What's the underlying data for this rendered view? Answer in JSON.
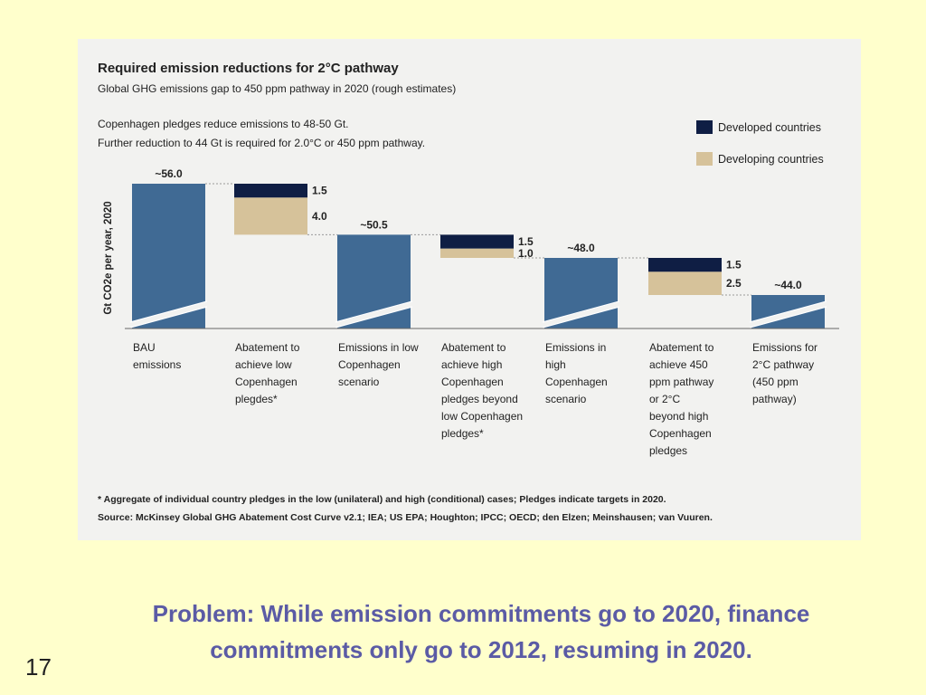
{
  "slide": {
    "caption_lines": [
      "Problem: While emission commitments go to 2020, finance",
      "commitments only go to 2012, resuming in 2020."
    ],
    "page_number": "17"
  },
  "chart_data": {
    "type": "bar",
    "subtype": "waterfall",
    "title": "Required emission reductions for 2°C pathway",
    "subtitle": "Global GHG emissions gap to 450 ppm pathway in 2020 (rough estimates)",
    "notes": [
      "Copenhagen pledges reduce emissions to 48-50 Gt.",
      "Further reduction to 44 Gt is required for 2.0°C or 450 ppm pathway."
    ],
    "ylabel": "Gt CO2e per year, 2020",
    "axis_break": true,
    "legend_position": "top-right",
    "colors": {
      "total": "#406a94",
      "developed": "#0f1e44",
      "developing": "#d6c29a",
      "connector": "#999999"
    },
    "series": [
      {
        "name": "Developed countries",
        "key": "developed"
      },
      {
        "name": "Developing countries",
        "key": "developing"
      }
    ],
    "bars": [
      {
        "kind": "total",
        "value": 56.0,
        "label": "~56.0",
        "category": [
          "BAU",
          "emissions"
        ]
      },
      {
        "kind": "reduction",
        "developed": 1.5,
        "developing": 4.0,
        "developed_label": "1.5",
        "developing_label": "4.0",
        "category": [
          "Abatement to",
          "achieve low",
          "Copenhagen",
          "plegdes*"
        ]
      },
      {
        "kind": "total",
        "value": 50.5,
        "label": "~50.5",
        "category": [
          "Emissions in low",
          "Copenhagen",
          "scenario"
        ]
      },
      {
        "kind": "reduction",
        "developed": 1.5,
        "developing": 1.0,
        "developed_label": "1.5",
        "developing_label": "1.0",
        "category": [
          "Abatement to",
          "achieve high",
          "Copenhagen",
          "pledges beyond",
          "low Copenhagen",
          "pledges*"
        ]
      },
      {
        "kind": "total",
        "value": 48.0,
        "label": "~48.0",
        "category": [
          "Emissions in",
          "high",
          "Copenhagen",
          "scenario"
        ]
      },
      {
        "kind": "reduction",
        "developed": 1.5,
        "developing": 2.5,
        "developed_label": "1.5",
        "developing_label": "2.5",
        "category": [
          "Abatement to",
          "achieve 450",
          "ppm pathway",
          "or 2°C",
          "beyond high",
          "Copenhagen",
          "pledges"
        ]
      },
      {
        "kind": "total",
        "value": 44.0,
        "label": "~44.0",
        "category": [
          "Emissions for",
          "2°C pathway",
          "(450 ppm",
          "pathway)"
        ]
      }
    ],
    "footnotes": [
      "* Aggregate of individual country pledges in the low (unilateral) and high (conditional) cases; Pledges indicate targets in 2020.",
      "Source: McKinsey Global GHG Abatement Cost Curve v2.1; IEA; US EPA; Houghton; IPCC; OECD; den Elzen; Meinshausen; van Vuuren."
    ]
  }
}
